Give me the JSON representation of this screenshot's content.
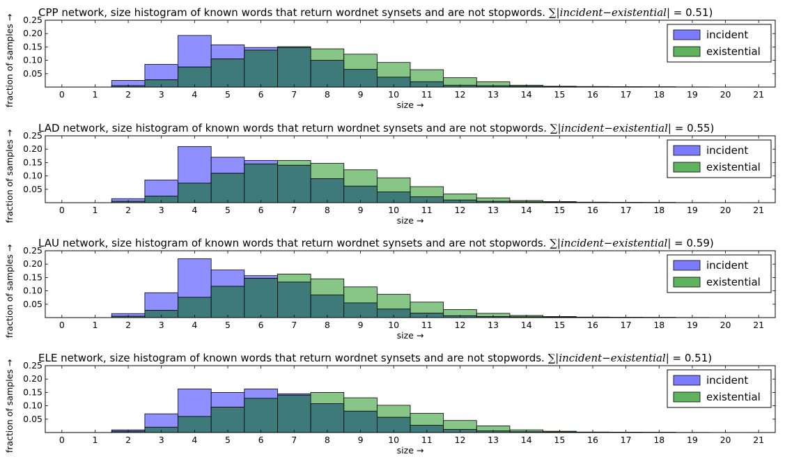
{
  "colors": {
    "incident": "#7b7bff",
    "existential": "#5fb35f",
    "overlap": "#3f7a7a",
    "axes": "#000000"
  },
  "chart_data": [
    {
      "type": "bar",
      "title": "CPP network, size histogram of known words that return wordnet synsets and are not stopwords.",
      "title_math": "∑|incident−existential|",
      "title_value": "= 0.51)",
      "xlabel": "size →",
      "ylabel": "fraction of samples →",
      "xticks": [
        "0",
        "1",
        "2",
        "3",
        "4",
        "5",
        "6",
        "7",
        "8",
        "9",
        "10",
        "11",
        "12",
        "13",
        "14",
        "15",
        "16",
        "17",
        "18",
        "19",
        "20",
        "21"
      ],
      "yticks": [
        "0.05",
        "0.10",
        "0.15",
        "0.20",
        "0.25"
      ],
      "ylim": [
        0,
        0.25
      ],
      "legend_position": "top-right",
      "categories": [
        2,
        3,
        4,
        5,
        6,
        7,
        8,
        9,
        10,
        11,
        12,
        13,
        14,
        15,
        16,
        17,
        18,
        19,
        20
      ],
      "series": [
        {
          "name": "incident",
          "values": [
            0.025,
            0.085,
            0.193,
            0.158,
            0.148,
            0.148,
            0.1,
            0.066,
            0.037,
            0.02,
            0.007,
            0.005,
            0.003,
            0.002,
            0.001,
            0.001,
            0.0005,
            0.0003,
            0.0002
          ]
        },
        {
          "name": "existential",
          "values": [
            0.005,
            0.027,
            0.075,
            0.105,
            0.138,
            0.151,
            0.143,
            0.123,
            0.092,
            0.065,
            0.035,
            0.02,
            0.007,
            0.003,
            0.002,
            0.001,
            0.001,
            0.0005,
            0.0003
          ]
        }
      ]
    },
    {
      "type": "bar",
      "title": "LAD network, size histogram of known words that return wordnet synsets and are not stopwords.",
      "title_math": "∑|incident−existential|",
      "title_value": "= 0.55)",
      "xlabel": "size →",
      "ylabel": "fraction of samples →",
      "xticks": [
        "0",
        "1",
        "2",
        "3",
        "4",
        "5",
        "6",
        "7",
        "8",
        "9",
        "10",
        "11",
        "12",
        "13",
        "14",
        "15",
        "16",
        "17",
        "18",
        "19",
        "20",
        "21"
      ],
      "yticks": [
        "0.05",
        "0.10",
        "0.15",
        "0.20",
        "0.25"
      ],
      "ylim": [
        0,
        0.25
      ],
      "legend_position": "top-right",
      "categories": [
        2,
        3,
        4,
        5,
        6,
        7,
        8,
        9,
        10,
        11,
        12,
        13,
        14,
        15,
        16,
        17,
        18,
        19,
        20
      ],
      "series": [
        {
          "name": "incident",
          "values": [
            0.015,
            0.085,
            0.21,
            0.17,
            0.158,
            0.14,
            0.09,
            0.062,
            0.04,
            0.022,
            0.01,
            0.005,
            0.003,
            0.002,
            0.001,
            0.001,
            0.0005,
            0.0003,
            0.0002
          ]
        },
        {
          "name": "existential",
          "values": [
            0.005,
            0.025,
            0.073,
            0.11,
            0.145,
            0.158,
            0.147,
            0.123,
            0.093,
            0.06,
            0.033,
            0.018,
            0.008,
            0.004,
            0.002,
            0.001,
            0.001,
            0.0005,
            0.0003
          ]
        }
      ]
    },
    {
      "type": "bar",
      "title": "LAU network, size histogram of known words that return wordnet synsets and are not stopwords.",
      "title_math": "∑|incident−existential|",
      "title_value": "= 0.59)",
      "xlabel": "size →",
      "ylabel": "fraction of samples →",
      "xticks": [
        "0",
        "1",
        "2",
        "3",
        "4",
        "5",
        "6",
        "7",
        "8",
        "9",
        "10",
        "11",
        "12",
        "13",
        "14",
        "15",
        "16",
        "17",
        "18",
        "19",
        "20",
        "21"
      ],
      "yticks": [
        "0.05",
        "0.10",
        "0.15",
        "0.20",
        "0.25"
      ],
      "ylim": [
        0,
        0.25
      ],
      "legend_position": "top-right",
      "categories": [
        2,
        3,
        4,
        5,
        6,
        7,
        8,
        9,
        10,
        11,
        12,
        13,
        14,
        15,
        16,
        17,
        18,
        19,
        20
      ],
      "series": [
        {
          "name": "incident",
          "values": [
            0.015,
            0.093,
            0.22,
            0.178,
            0.157,
            0.133,
            0.085,
            0.055,
            0.032,
            0.017,
            0.007,
            0.004,
            0.003,
            0.002,
            0.001,
            0.001,
            0.0005,
            0.0003,
            0.0002
          ]
        },
        {
          "name": "existential",
          "values": [
            0.005,
            0.027,
            0.076,
            0.117,
            0.147,
            0.163,
            0.145,
            0.115,
            0.087,
            0.058,
            0.03,
            0.016,
            0.008,
            0.004,
            0.002,
            0.001,
            0.001,
            0.0005,
            0.0003
          ]
        }
      ]
    },
    {
      "type": "bar",
      "title": "ELE network, size histogram of known words that return wordnet synsets and are not stopwords.",
      "title_math": "∑|incident−existential|",
      "title_value": "= 0.51)",
      "xlabel": "size →",
      "ylabel": "fraction of samples →",
      "xticks": [
        "0",
        "1",
        "2",
        "3",
        "4",
        "5",
        "6",
        "7",
        "8",
        "9",
        "10",
        "11",
        "12",
        "13",
        "14",
        "15",
        "16",
        "17",
        "18",
        "19",
        "20",
        "21"
      ],
      "yticks": [
        "0.05",
        "0.10",
        "0.15",
        "0.20",
        "0.25"
      ],
      "ylim": [
        0,
        0.25
      ],
      "legend_position": "top-right",
      "categories": [
        2,
        3,
        4,
        5,
        6,
        7,
        8,
        9,
        10,
        11,
        12,
        13,
        14,
        15,
        16,
        17,
        18,
        19,
        20
      ],
      "series": [
        {
          "name": "incident",
          "values": [
            0.01,
            0.07,
            0.163,
            0.15,
            0.163,
            0.145,
            0.108,
            0.08,
            0.057,
            0.027,
            0.012,
            0.006,
            0.003,
            0.002,
            0.001,
            0.001,
            0.0005,
            0.0003,
            0.0002
          ]
        },
        {
          "name": "existential",
          "values": [
            0.005,
            0.02,
            0.06,
            0.095,
            0.128,
            0.14,
            0.15,
            0.13,
            0.102,
            0.072,
            0.045,
            0.025,
            0.01,
            0.005,
            0.002,
            0.001,
            0.001,
            0.0005,
            0.0003
          ]
        }
      ]
    }
  ]
}
